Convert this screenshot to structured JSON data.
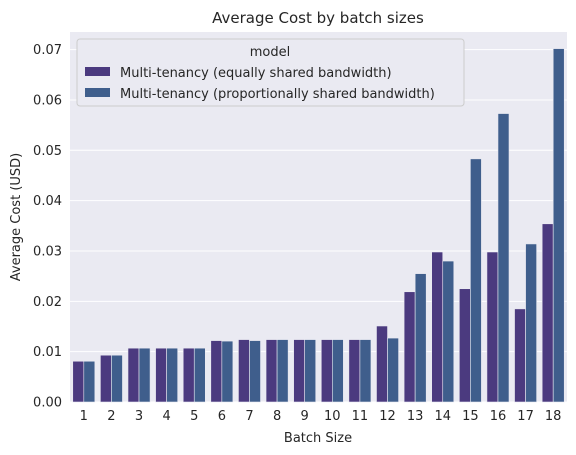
{
  "chart_data": {
    "type": "bar",
    "title": "Average Cost by batch sizes",
    "xlabel": "Batch Size",
    "ylabel": "Average Cost (USD)",
    "categories": [
      "1",
      "2",
      "3",
      "4",
      "5",
      "6",
      "7",
      "8",
      "9",
      "10",
      "11",
      "12",
      "13",
      "14",
      "15",
      "16",
      "17",
      "18"
    ],
    "ylim": [
      0,
      0.0735
    ],
    "yticks": [
      "0.00",
      "0.01",
      "0.02",
      "0.03",
      "0.04",
      "0.05",
      "0.06",
      "0.07"
    ],
    "grid": true,
    "legend": {
      "title": "model",
      "placement": "top-left"
    },
    "series": [
      {
        "name": "Multi-tenancy (equally shared bandwidth)",
        "color": "#4b3a7f",
        "values": [
          0.0081,
          0.0093,
          0.0107,
          0.0107,
          0.0107,
          0.0122,
          0.0124,
          0.0124,
          0.0124,
          0.0124,
          0.0124,
          0.0151,
          0.0219,
          0.0298,
          0.0225,
          0.0298,
          0.0185,
          0.0354
        ]
      },
      {
        "name": "Multi-tenancy (proportionally shared bandwidth)",
        "color": "#3f5e8c",
        "values": [
          0.0081,
          0.0093,
          0.0107,
          0.0107,
          0.0107,
          0.0121,
          0.0122,
          0.0124,
          0.0124,
          0.0124,
          0.0124,
          0.0127,
          0.0255,
          0.028,
          0.0483,
          0.0573,
          0.0314,
          0.0702
        ]
      }
    ]
  }
}
